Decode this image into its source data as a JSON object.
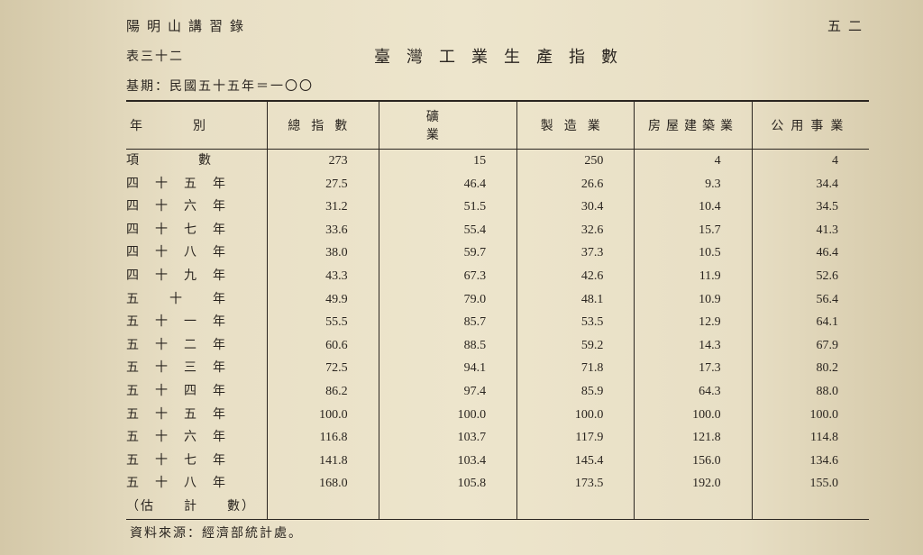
{
  "header": {
    "book_title": "陽明山講習錄",
    "page_num": "五二"
  },
  "table": {
    "number": "表三十二",
    "title": "臺灣工業生產指數",
    "base_period": "基期：民國五十五年＝一〇〇",
    "columns": [
      "年　　　　別",
      "總指數",
      "礦業",
      "製造業",
      "房屋建築業",
      "公用事業"
    ],
    "item_row_label": "項　　　　數",
    "item_values": [
      "273",
      "15",
      "250",
      "4",
      "4"
    ],
    "rows": [
      {
        "year": "四　十　五　年",
        "vals": [
          "27.5",
          "46.4",
          "26.6",
          "9.3",
          "34.4"
        ]
      },
      {
        "year": "四　十　六　年",
        "vals": [
          "31.2",
          "51.5",
          "30.4",
          "10.4",
          "34.5"
        ]
      },
      {
        "year": "四　十　七　年",
        "vals": [
          "33.6",
          "55.4",
          "32.6",
          "15.7",
          "41.3"
        ]
      },
      {
        "year": "四　十　八　年",
        "vals": [
          "38.0",
          "59.7",
          "37.3",
          "10.5",
          "46.4"
        ]
      },
      {
        "year": "四　十　九　年",
        "vals": [
          "43.3",
          "67.3",
          "42.6",
          "11.9",
          "52.6"
        ]
      },
      {
        "year": "五　　十　　年",
        "vals": [
          "49.9",
          "79.0",
          "48.1",
          "10.9",
          "56.4"
        ]
      },
      {
        "year": "五　十　一　年",
        "vals": [
          "55.5",
          "85.7",
          "53.5",
          "12.9",
          "64.1"
        ]
      },
      {
        "year": "五　十　二　年",
        "vals": [
          "60.6",
          "88.5",
          "59.2",
          "14.3",
          "67.9"
        ]
      },
      {
        "year": "五　十　三　年",
        "vals": [
          "72.5",
          "94.1",
          "71.8",
          "17.3",
          "80.2"
        ]
      },
      {
        "year": "五　十　四　年",
        "vals": [
          "86.2",
          "97.4",
          "85.9",
          "64.3",
          "88.0"
        ]
      },
      {
        "year": "五　十　五　年",
        "vals": [
          "100.0",
          "100.0",
          "100.0",
          "100.0",
          "100.0"
        ]
      },
      {
        "year": "五　十　六　年",
        "vals": [
          "116.8",
          "103.7",
          "117.9",
          "121.8",
          "114.8"
        ]
      },
      {
        "year": "五　十　七　年",
        "vals": [
          "141.8",
          "103.4",
          "145.4",
          "156.0",
          "134.6"
        ]
      },
      {
        "year": "五　十　八　年",
        "vals": [
          "168.0",
          "105.8",
          "173.5",
          "192.0",
          "155.0"
        ]
      }
    ],
    "est_note": "（估　　計　　數）",
    "source": "資料來源：經濟部統計處。"
  },
  "style": {
    "bg": "#ede5cc",
    "text": "#2a2520",
    "rule": "#2a2520"
  }
}
